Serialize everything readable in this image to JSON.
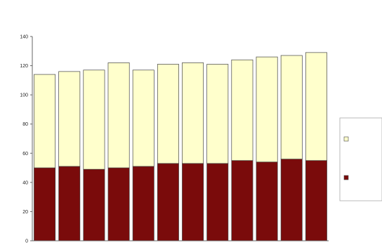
{
  "chart_data": {
    "type": "bar",
    "stacked": true,
    "title": "",
    "xlabel": "",
    "ylabel": "",
    "ylim": [
      0,
      140
    ],
    "yticks": [
      0,
      20,
      40,
      60,
      80,
      100,
      120,
      140
    ],
    "grid": false,
    "legend_position": "right",
    "categories": [
      "",
      "",
      "",
      "",
      "",
      "",
      "",
      "",
      "",
      "",
      "",
      ""
    ],
    "series": [
      {
        "name": "",
        "color": "#7a0b0b",
        "values": [
          50,
          51,
          49,
          50,
          51,
          53,
          53,
          53,
          55,
          54,
          56,
          55
        ]
      },
      {
        "name": "",
        "color": "#ffffcc",
        "values": [
          64,
          65,
          68,
          72,
          66,
          68,
          69,
          68,
          69,
          72,
          71,
          74
        ]
      }
    ]
  }
}
